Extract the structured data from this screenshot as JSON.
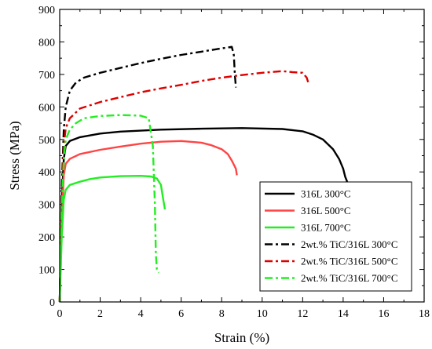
{
  "chart_data": {
    "type": "line",
    "xlabel": "Strain (%)",
    "ylabel": "Stress (MPa)",
    "xlim": [
      0,
      18
    ],
    "ylim": [
      0,
      900
    ],
    "xticks": [
      "0",
      "2",
      "4",
      "6",
      "8",
      "10",
      "12",
      "14",
      "16",
      "18"
    ],
    "yticks": [
      "0",
      "100",
      "200",
      "300",
      "400",
      "500",
      "600",
      "700",
      "800",
      "900"
    ],
    "legend_position": "bottom-right",
    "series": [
      {
        "name": "316L 300°C",
        "color": "#000000",
        "style": "solid",
        "x": [
          0,
          0.1,
          0.2,
          0.3,
          0.5,
          1,
          2,
          3,
          5,
          7,
          9,
          11,
          12,
          12.5,
          13,
          13.5,
          13.8,
          14.0,
          14.1,
          14.2
        ],
        "y": [
          0,
          300,
          440,
          480,
          495,
          507,
          518,
          524,
          530,
          533,
          535,
          532,
          525,
          515,
          500,
          470,
          440,
          410,
          385,
          370
        ]
      },
      {
        "name": "316L 500°C",
        "color": "#ff4444",
        "style": "solid",
        "x": [
          0,
          0.1,
          0.2,
          0.3,
          0.5,
          1,
          2,
          3,
          4,
          5,
          6,
          7,
          7.5,
          8,
          8.3,
          8.5,
          8.7,
          8.75
        ],
        "y": [
          0,
          250,
          390,
          425,
          440,
          455,
          468,
          478,
          487,
          493,
          495,
          490,
          482,
          470,
          455,
          435,
          410,
          390
        ]
      },
      {
        "name": "316L 700°C",
        "color": "#22ee22",
        "style": "solid",
        "x": [
          0,
          0.1,
          0.2,
          0.3,
          0.5,
          1,
          1.5,
          2,
          3,
          4,
          4.5,
          4.8,
          5.0,
          5.1,
          5.2
        ],
        "y": [
          0,
          200,
          315,
          345,
          360,
          370,
          378,
          383,
          387,
          388,
          386,
          380,
          360,
          320,
          285
        ]
      },
      {
        "name": "2wt.% TiC/316L 300°C",
        "color": "#000000",
        "style": "dashdot",
        "x": [
          0,
          0.1,
          0.2,
          0.3,
          0.5,
          0.8,
          1.2,
          2,
          3,
          4,
          5,
          6,
          7,
          8,
          8.5,
          8.6,
          8.65,
          8.7
        ],
        "y": [
          0,
          350,
          530,
          600,
          650,
          675,
          690,
          705,
          720,
          735,
          748,
          760,
          770,
          780,
          785,
          760,
          700,
          660
        ]
      },
      {
        "name": "2wt.% TiC/316L 500°C",
        "color": "#dd0000",
        "style": "dashdot",
        "x": [
          0,
          0.1,
          0.2,
          0.3,
          0.5,
          1,
          2,
          3,
          4,
          5,
          6,
          7,
          8,
          9,
          10,
          11,
          11.5,
          12,
          12.2,
          12.3
        ],
        "y": [
          0,
          300,
          480,
          535,
          565,
          595,
          615,
          630,
          645,
          657,
          668,
          680,
          690,
          698,
          705,
          710,
          707,
          705,
          690,
          670
        ]
      },
      {
        "name": "2wt.% TiC/316L 700°C",
        "color": "#22ee22",
        "style": "dashdot",
        "x": [
          0,
          0.1,
          0.2,
          0.3,
          0.5,
          0.8,
          1.2,
          2,
          3,
          4,
          4.4,
          4.6,
          4.7,
          4.75,
          4.8,
          4.9
        ],
        "y": [
          0,
          280,
          440,
          500,
          530,
          550,
          565,
          572,
          575,
          573,
          565,
          480,
          300,
          150,
          100,
          90
        ]
      }
    ]
  }
}
